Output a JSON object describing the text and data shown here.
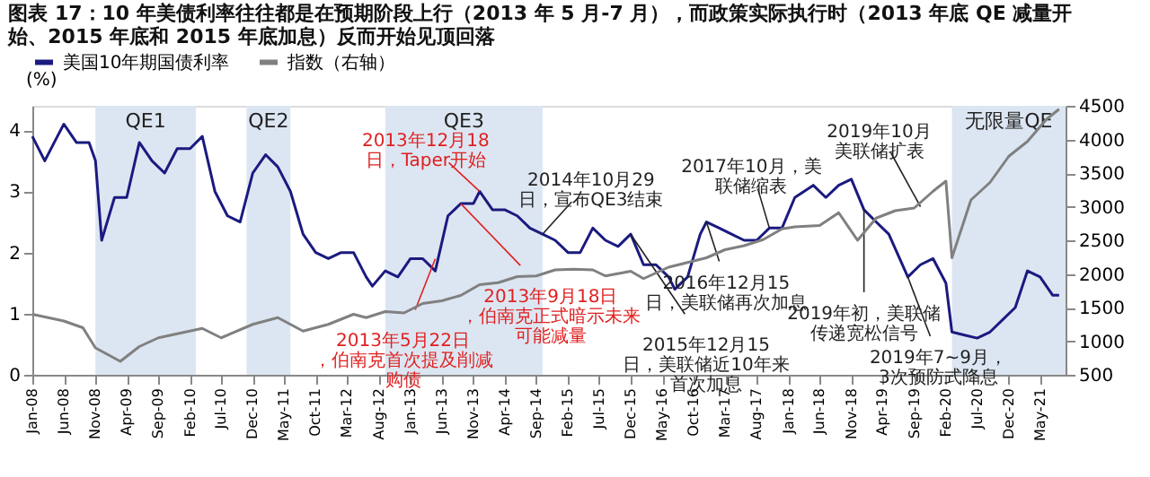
{
  "chart_data": {
    "type": "line",
    "title": "图表 17：10 年美债利率往往都是在预期阶段上行（2013 年 5 月-7 月），而政策实际执行时（2013 年底 QE 减量开始、2015 年底和 2015 年底加息）反而开始见顶回落",
    "ylabel": "(%)",
    "legend": "top",
    "grid": false,
    "marker": "none",
    "line_style": "solid",
    "xlim": [
      "2008-01",
      "2021-09"
    ],
    "ylim": [
      0,
      4.4
    ],
    "yticks": [
      0,
      1,
      2,
      3,
      4
    ],
    "y2lim": [
      500,
      4500
    ],
    "y2ticks": [
      500,
      1000,
      1500,
      2000,
      2500,
      3000,
      3500,
      4000,
      4500
    ],
    "xticks": [
      {
        "value": "2008-01",
        "label": "Jan-08"
      },
      {
        "value": "2008-06",
        "label": "Jun-08"
      },
      {
        "value": "2008-11",
        "label": "Nov-08"
      },
      {
        "value": "2009-04",
        "label": "Apr-09"
      },
      {
        "value": "2009-09",
        "label": "Sep-09"
      },
      {
        "value": "2010-02",
        "label": "Feb-10"
      },
      {
        "value": "2010-07",
        "label": "Jul-10"
      },
      {
        "value": "2010-12",
        "label": "Dec-10"
      },
      {
        "value": "2011-05",
        "label": "May-11"
      },
      {
        "value": "2011-10",
        "label": "Oct-11"
      },
      {
        "value": "2012-03",
        "label": "Mar-12"
      },
      {
        "value": "2012-08",
        "label": "Aug-12"
      },
      {
        "value": "2013-01",
        "label": "Jan-13"
      },
      {
        "value": "2013-06",
        "label": "Jun-13"
      },
      {
        "value": "2013-11",
        "label": "Nov-13"
      },
      {
        "value": "2014-04",
        "label": "Apr-14"
      },
      {
        "value": "2014-09",
        "label": "Sep-14"
      },
      {
        "value": "2015-02",
        "label": "Feb-15"
      },
      {
        "value": "2015-07",
        "label": "Jul-15"
      },
      {
        "value": "2015-12",
        "label": "Dec-15"
      },
      {
        "value": "2016-05",
        "label": "May-16"
      },
      {
        "value": "2016-10",
        "label": "Oct-16"
      },
      {
        "value": "2017-03",
        "label": "Mar-17"
      },
      {
        "value": "2017-08",
        "label": "Aug-17"
      },
      {
        "value": "2018-01",
        "label": "Jan-18"
      },
      {
        "value": "2018-06",
        "label": "Jun-18"
      },
      {
        "value": "2018-11",
        "label": "Nov-18"
      },
      {
        "value": "2019-04",
        "label": "Apr-19"
      },
      {
        "value": "2019-09",
        "label": "Sep-19"
      },
      {
        "value": "2020-02",
        "label": "Feb-20"
      },
      {
        "value": "2020-07",
        "label": "Jul-20"
      },
      {
        "value": "2020-12",
        "label": "Dec-20"
      },
      {
        "value": "2021-05",
        "label": "May-21"
      }
    ],
    "series": [
      {
        "name": "美国10年期国债利率",
        "color": "#1a1a80",
        "x": [
          "2008-01",
          "2008-03",
          "2008-05",
          "2008-06",
          "2008-08",
          "2008-10",
          "2008-11",
          "2008-12",
          "2009-02",
          "2009-04",
          "2009-06",
          "2009-08",
          "2009-10",
          "2009-12",
          "2010-02",
          "2010-04",
          "2010-06",
          "2010-08",
          "2010-10",
          "2010-12",
          "2011-02",
          "2011-04",
          "2011-06",
          "2011-08",
          "2011-10",
          "2011-12",
          "2012-02",
          "2012-04",
          "2012-06",
          "2012-07",
          "2012-09",
          "2012-11",
          "2013-01",
          "2013-03",
          "2013-05",
          "2013-07",
          "2013-09",
          "2013-11",
          "2013-12",
          "2014-02",
          "2014-04",
          "2014-06",
          "2014-08",
          "2014-10",
          "2014-12",
          "2015-02",
          "2015-04",
          "2015-06",
          "2015-08",
          "2015-10",
          "2015-12",
          "2016-02",
          "2016-04",
          "2016-06",
          "2016-07",
          "2016-09",
          "2016-11",
          "2016-12",
          "2017-02",
          "2017-04",
          "2017-06",
          "2017-08",
          "2017-10",
          "2017-12",
          "2018-02",
          "2018-05",
          "2018-07",
          "2018-09",
          "2018-11",
          "2019-01",
          "2019-03",
          "2019-05",
          "2019-08",
          "2019-10",
          "2019-12",
          "2020-02",
          "2020-03",
          "2020-05",
          "2020-07",
          "2020-09",
          "2020-11",
          "2021-01",
          "2021-03",
          "2021-05",
          "2021-07",
          "2021-08"
        ],
        "values": [
          3.9,
          3.5,
          3.9,
          4.1,
          3.8,
          3.8,
          3.5,
          2.2,
          2.9,
          2.9,
          3.8,
          3.5,
          3.3,
          3.7,
          3.7,
          3.9,
          3.0,
          2.6,
          2.5,
          3.3,
          3.6,
          3.4,
          3.0,
          2.3,
          2.0,
          1.9,
          2.0,
          2.0,
          1.6,
          1.45,
          1.7,
          1.6,
          1.9,
          1.9,
          1.7,
          2.6,
          2.8,
          2.8,
          3.0,
          2.7,
          2.7,
          2.6,
          2.4,
          2.3,
          2.2,
          2.0,
          2.0,
          2.4,
          2.2,
          2.1,
          2.3,
          1.8,
          1.8,
          1.6,
          1.4,
          1.6,
          2.3,
          2.5,
          2.4,
          2.3,
          2.2,
          2.2,
          2.4,
          2.4,
          2.9,
          3.1,
          2.9,
          3.1,
          3.2,
          2.7,
          2.5,
          2.3,
          1.6,
          1.8,
          1.9,
          1.5,
          0.7,
          0.65,
          0.6,
          0.7,
          0.9,
          1.1,
          1.7,
          1.6,
          1.3,
          1.3
        ]
      },
      {
        "name": "指数（右轴）",
        "color": "#808080",
        "axis": "y2",
        "x": [
          "2008-01",
          "2008-06",
          "2008-09",
          "2008-11",
          "2009-03",
          "2009-06",
          "2009-09",
          "2009-12",
          "2010-04",
          "2010-07",
          "2010-12",
          "2011-04",
          "2011-08",
          "2011-12",
          "2012-04",
          "2012-06",
          "2012-09",
          "2012-12",
          "2013-03",
          "2013-06",
          "2013-09",
          "2013-12",
          "2014-03",
          "2014-06",
          "2014-09",
          "2014-12",
          "2015-03",
          "2015-06",
          "2015-08",
          "2015-12",
          "2016-02",
          "2016-06",
          "2016-09",
          "2016-12",
          "2017-03",
          "2017-06",
          "2017-09",
          "2017-12",
          "2018-02",
          "2018-06",
          "2018-09",
          "2018-12",
          "2019-03",
          "2019-06",
          "2019-09",
          "2019-12",
          "2020-02",
          "2020-03",
          "2020-06",
          "2020-09",
          "2020-12",
          "2021-03",
          "2021-06",
          "2021-08"
        ],
        "values": [
          1400,
          1300,
          1200,
          900,
          700,
          920,
          1050,
          1110,
          1190,
          1050,
          1250,
          1350,
          1150,
          1250,
          1400,
          1350,
          1440,
          1420,
          1560,
          1600,
          1680,
          1840,
          1870,
          1960,
          1970,
          2060,
          2070,
          2060,
          1970,
          2040,
          1930,
          2100,
          2170,
          2240,
          2360,
          2420,
          2510,
          2670,
          2700,
          2720,
          2910,
          2500,
          2830,
          2940,
          2980,
          3230,
          3380,
          2240,
          3100,
          3360,
          3750,
          3970,
          4300,
          4450
        ]
      }
    ],
    "bands": [
      {
        "axis": "x",
        "from": "2008-11",
        "to": "2010-03",
        "label": "QE1",
        "color": "#dce6f2"
      },
      {
        "axis": "x",
        "from": "2010-11",
        "to": "2011-06",
        "label": "QE2",
        "color": "#dce6f2"
      },
      {
        "axis": "x",
        "from": "2012-09",
        "to": "2014-10",
        "label": "QE3",
        "color": "#dce6f2"
      },
      {
        "axis": "x",
        "from": "2020-03",
        "to": "2021-09",
        "label": "无限量QE",
        "color": "#dce6f2"
      }
    ],
    "annotations": [
      {
        "text": "2013年12月18日，Taper开始",
        "x": "2013-12",
        "y": 3.0
      },
      {
        "text": "2013年5月22日，伯南克首次提及削减购债",
        "x": "2013-05",
        "y": 1.9
      },
      {
        "text": "2013年9月18日，伯南克正式暗示未来可能减量",
        "x": "2013-09",
        "y": 2.8
      },
      {
        "text": "2014年10月29日，宣布QE3结束",
        "x": "2014-10",
        "y": 2.3
      },
      {
        "text": "2015年12月15日，美联储近10年来首次加息",
        "x": "2015-12",
        "y": 2.3
      },
      {
        "text": "2016年12月15日，美联储再次加息",
        "x": "2016-12",
        "y": 2.5
      },
      {
        "text": "2017年10月，美联储缩表",
        "x": "2017-10",
        "y": 2.4
      },
      {
        "text": "2019年初，美联储传递宽松信号",
        "x": "2019-01",
        "y": 2.7
      },
      {
        "text": "2019年7~9月，3次预防式降息",
        "x": "2019-08",
        "y": 1.6
      },
      {
        "text": "2019年10月美联储扩表",
        "x": "2019-10",
        "y": 2.75
      }
    ]
  }
}
